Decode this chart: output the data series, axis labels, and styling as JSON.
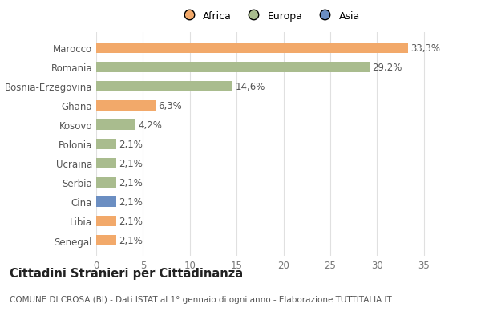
{
  "countries": [
    "Senegal",
    "Libia",
    "Cina",
    "Serbia",
    "Ucraina",
    "Polonia",
    "Kosovo",
    "Ghana",
    "Bosnia-Erzegovina",
    "Romania",
    "Marocco"
  ],
  "values": [
    2.1,
    2.1,
    2.1,
    2.1,
    2.1,
    2.1,
    4.2,
    6.3,
    14.6,
    29.2,
    33.3
  ],
  "labels": [
    "2,1%",
    "2,1%",
    "2,1%",
    "2,1%",
    "2,1%",
    "2,1%",
    "4,2%",
    "6,3%",
    "14,6%",
    "29,2%",
    "33,3%"
  ],
  "continents": [
    "Africa",
    "Africa",
    "Asia",
    "Europa",
    "Europa",
    "Europa",
    "Europa",
    "Africa",
    "Europa",
    "Europa",
    "Africa"
  ],
  "colors": {
    "Africa": "#F2A96A",
    "Europa": "#A9BC8E",
    "Asia": "#6B8EC2"
  },
  "xlim": [
    0,
    37
  ],
  "xticks": [
    0,
    5,
    10,
    15,
    20,
    25,
    30,
    35
  ],
  "title": "Cittadini Stranieri per Cittadinanza",
  "subtitle": "COMUNE DI CROSA (BI) - Dati ISTAT al 1° gennaio di ogni anno - Elaborazione TUTTITALIA.IT",
  "bg_color": "#ffffff",
  "grid_color": "#e0e0e0",
  "bar_height": 0.55,
  "label_fontsize": 8.5,
  "tick_fontsize": 8.5,
  "title_fontsize": 10.5,
  "subtitle_fontsize": 7.5
}
